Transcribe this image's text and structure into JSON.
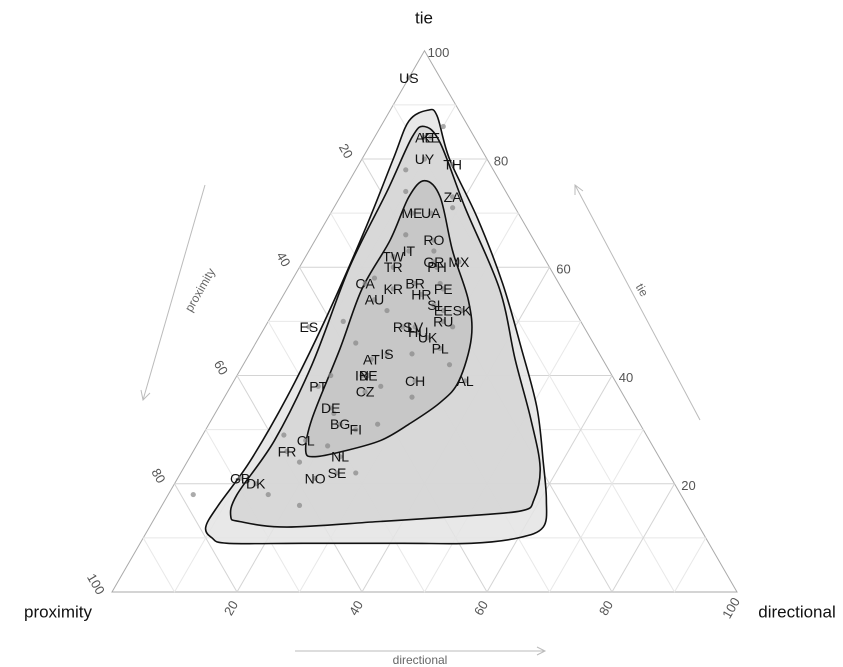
{
  "chart_data": {
    "type": "ternary",
    "corner_labels": {
      "tie": "tie",
      "proximity": "proximity",
      "directional": "directional"
    },
    "axis_titles": {
      "tie": "tie",
      "proximity": "proximity",
      "directional": "directional"
    },
    "tie_ticks": [
      20,
      40,
      60,
      80,
      100
    ],
    "proximity_ticks": [
      20,
      40,
      60,
      80,
      100
    ],
    "directional_ticks": [
      20,
      40,
      60,
      80,
      100
    ],
    "grid": true,
    "point_color": "#888888",
    "contours": [
      {
        "fill": "#e4e4e4",
        "tie": [
          89,
          88,
          80,
          69,
          57,
          45,
          34,
          24,
          17,
          12,
          10,
          9,
          9,
          9,
          9,
          10,
          12,
          16,
          24,
          36,
          50,
          67,
          80,
          87
        ],
        "directional": [
          6,
          8,
          14,
          24,
          34,
          43,
          51,
          57,
          61,
          63,
          60,
          53,
          42,
          26,
          14,
          11,
          9,
          9,
          10,
          10,
          9,
          7,
          5,
          4
        ]
      },
      {
        "fill": "#d5d5d5",
        "tie": [
          86,
          83,
          71,
          56,
          43,
          32,
          23,
          17,
          15,
          14,
          13,
          12,
          13,
          14,
          18,
          28,
          42,
          60,
          74,
          84
        ],
        "directional": [
          7,
          11,
          21,
          34,
          43,
          51,
          57,
          59,
          58,
          49,
          36,
          22,
          14,
          12,
          11,
          12,
          11,
          8,
          7,
          6
        ]
      },
      {
        "fill": "#c4c4c4",
        "tie": [
          76,
          73,
          63,
          54,
          47,
          39,
          35,
          31,
          28,
          26,
          25,
          26,
          32,
          45,
          56,
          65,
          73
        ],
        "directional": [
          12,
          16,
          23,
          30,
          34,
          36,
          35,
          32,
          29,
          24,
          20,
          18,
          16,
          14,
          12,
          12,
          11
        ]
      }
    ],
    "points": {
      "tie": [
        86,
        78,
        74,
        71,
        66,
        63,
        58,
        57,
        52,
        50,
        49,
        46,
        44,
        42,
        40,
        38,
        36,
        33,
        31,
        29,
        27,
        24,
        22,
        18,
        16,
        18
      ],
      "directional": [
        10,
        8,
        10,
        19,
        14,
        20,
        13,
        24,
        18,
        12,
        30,
        16,
        26,
        33,
        15,
        24,
        30,
        19,
        27,
        13,
        21,
        18,
        28,
        16,
        22,
        4
      ]
    },
    "countries": {
      "names": [
        "US",
        "AE",
        "KE",
        "UY",
        "TH",
        "ZA",
        "ME",
        "UA",
        "RO",
        "IT",
        "TW",
        "TR",
        "GR",
        "PH",
        "MX",
        "BR",
        "CA",
        "PE",
        "KR",
        "HR",
        "AU",
        "SI",
        "EE",
        "SK",
        "ES",
        "RU",
        "LV",
        "RS",
        "HU",
        "UK",
        "PL",
        "IS",
        "AT",
        "IN",
        "BE",
        "CH",
        "AL",
        "PT",
        "CZ",
        "DE",
        "BG",
        "FI",
        "CL",
        "FR",
        "NL",
        "SE",
        "NO",
        "GB",
        "DK"
      ],
      "tie": [
        95,
        84,
        84,
        80,
        79,
        73,
        70,
        70,
        65,
        63,
        62,
        60,
        61,
        60,
        61,
        57,
        57,
        56,
        56,
        55,
        54,
        53,
        52,
        52,
        49,
        50,
        49,
        49,
        48,
        47,
        45,
        44,
        43,
        40,
        40,
        39,
        39,
        38,
        37,
        34,
        31,
        30,
        28,
        26,
        25,
        22,
        21,
        21,
        20
      ],
      "directional": [
        0,
        8,
        9,
        10,
        15,
        18,
        13,
        16,
        19,
        16,
        14,
        15,
        21,
        22,
        25,
        20,
        12,
        25,
        17,
        22,
        15,
        25,
        27,
        30,
        7,
        28,
        24,
        22,
        25,
        27,
        30,
        22,
        20,
        20,
        21,
        29,
        37,
        14,
        22,
        18,
        21,
        24,
        17,
        15,
        24,
        25,
        22,
        10,
        13
      ]
    }
  }
}
